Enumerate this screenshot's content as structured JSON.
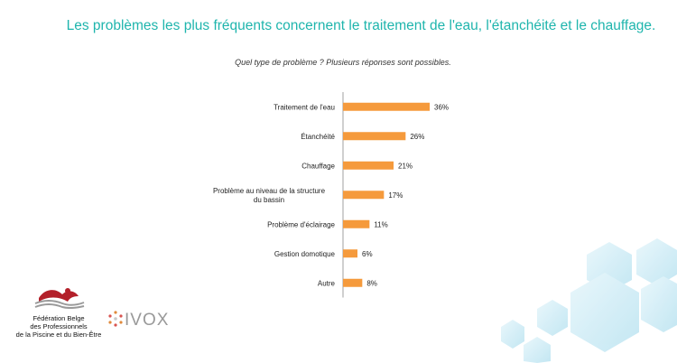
{
  "title": "Les problèmes les plus fréquents concernent le traitement de l'eau, l'étanchéité et le chauffage.",
  "subtitle": "Quel type de problème ? Plusieurs réponses sont possibles.",
  "colors": {
    "accent": "#1fb5ad",
    "bar": "#f59a3c",
    "axis": "#888888"
  },
  "chart_data": {
    "type": "bar",
    "orientation": "horizontal",
    "categories": [
      [
        "Traitement de l'eau"
      ],
      [
        "Étanchéité"
      ],
      [
        "Chauffage"
      ],
      [
        "Problème au niveau de la structure",
        "du bassin"
      ],
      [
        "Problème d'éclairage"
      ],
      [
        "Gestion domotique"
      ],
      [
        "Autre"
      ]
    ],
    "values": [
      36,
      26,
      21,
      17,
      11,
      6,
      8
    ],
    "value_labels": [
      "36%",
      "26%",
      "21%",
      "17%",
      "11%",
      "6%",
      "8%"
    ],
    "xlim": [
      0,
      100
    ],
    "grid": false
  },
  "logos": {
    "federation": {
      "lines": [
        "Fédération Belge",
        "des Professionnels",
        "de la Piscine et du Bien-Être"
      ]
    },
    "ivox": "IVOX"
  }
}
